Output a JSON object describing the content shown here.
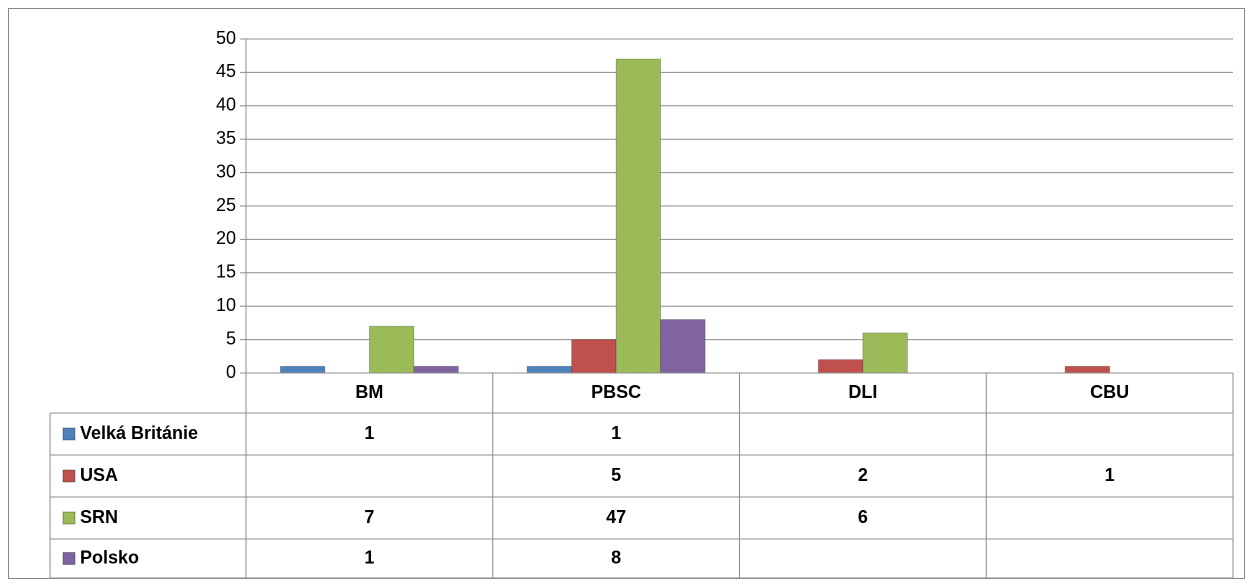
{
  "chart_data": {
    "type": "bar",
    "categories": [
      "BM",
      "PBSC",
      "DLI",
      "CBU"
    ],
    "series": [
      {
        "name": "Velká Británie",
        "color": "#4f81bd",
        "values": [
          1,
          1,
          null,
          null
        ]
      },
      {
        "name": "USA",
        "color": "#c0504d",
        "values": [
          null,
          5,
          2,
          1
        ]
      },
      {
        "name": "SRN",
        "color": "#9bbb59",
        "values": [
          7,
          47,
          6,
          null
        ]
      },
      {
        "name": "Polsko",
        "color": "#8064a2",
        "values": [
          1,
          8,
          null,
          null
        ]
      }
    ],
    "ylim": [
      0,
      50
    ],
    "yticks": [
      0,
      5,
      10,
      15,
      20,
      25,
      30,
      35,
      40,
      45,
      50
    ],
    "grid": true
  }
}
